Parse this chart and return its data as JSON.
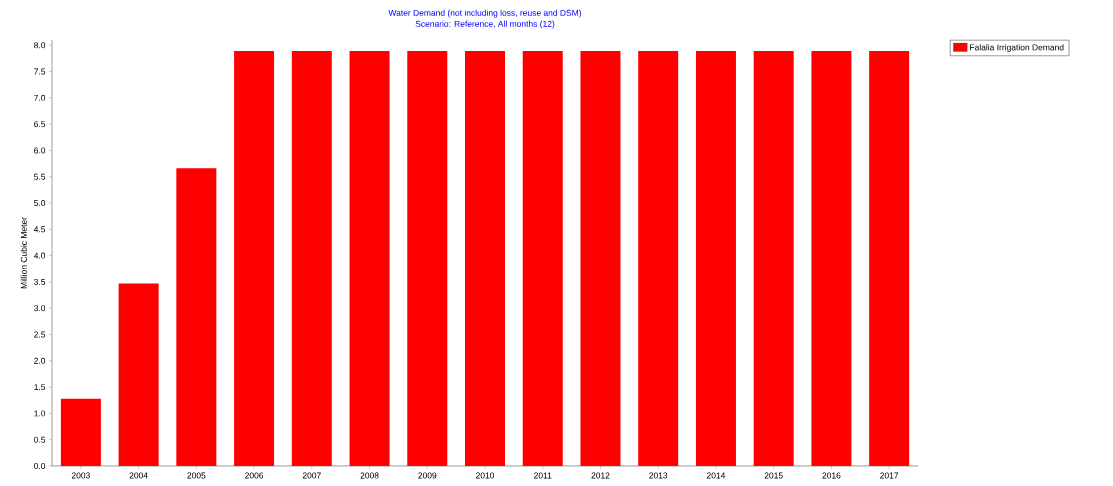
{
  "chart_data": {
    "type": "bar",
    "title": "Water Demand (not including loss, reuse and DSM)",
    "subtitle": "Scenario: Reference,  All months (12)",
    "ylabel": "Million Cubic Meter",
    "categories": [
      "2003",
      "2004",
      "2005",
      "2006",
      "2007",
      "2008",
      "2009",
      "2010",
      "2011",
      "2012",
      "2013",
      "2014",
      "2015",
      "2016",
      "2017"
    ],
    "series": [
      {
        "name": "Falalia Irrigation Demand",
        "color": "#ff0000",
        "values": [
          1.28,
          3.47,
          5.66,
          7.89,
          7.89,
          7.89,
          7.89,
          7.89,
          7.89,
          7.89,
          7.89,
          7.89,
          7.89,
          7.89,
          7.89
        ]
      }
    ],
    "ylim": [
      0,
      8.1
    ],
    "yticks": [
      {
        "value": 0,
        "label": "0.0"
      },
      {
        "value": 0.5,
        "label": "0.5"
      },
      {
        "value": 1,
        "label": "1.0"
      },
      {
        "value": 1.5,
        "label": "1.5"
      },
      {
        "value": 2,
        "label": "2.0"
      },
      {
        "value": 2.5,
        "label": "2.5"
      },
      {
        "value": 3,
        "label": "3.0"
      },
      {
        "value": 3.5,
        "label": "3.5"
      },
      {
        "value": 4,
        "label": "4.0"
      },
      {
        "value": 4.5,
        "label": "4.5"
      },
      {
        "value": 5,
        "label": "5.0"
      },
      {
        "value": 5.5,
        "label": "5.5"
      },
      {
        "value": 6,
        "label": "6.0"
      },
      {
        "value": 6.5,
        "label": "6.5"
      },
      {
        "value": 7,
        "label": "7.0"
      },
      {
        "value": 7.5,
        "label": "7.5"
      },
      {
        "value": 8,
        "label": "8.0"
      }
    ],
    "legend": "top right",
    "grid": false
  }
}
